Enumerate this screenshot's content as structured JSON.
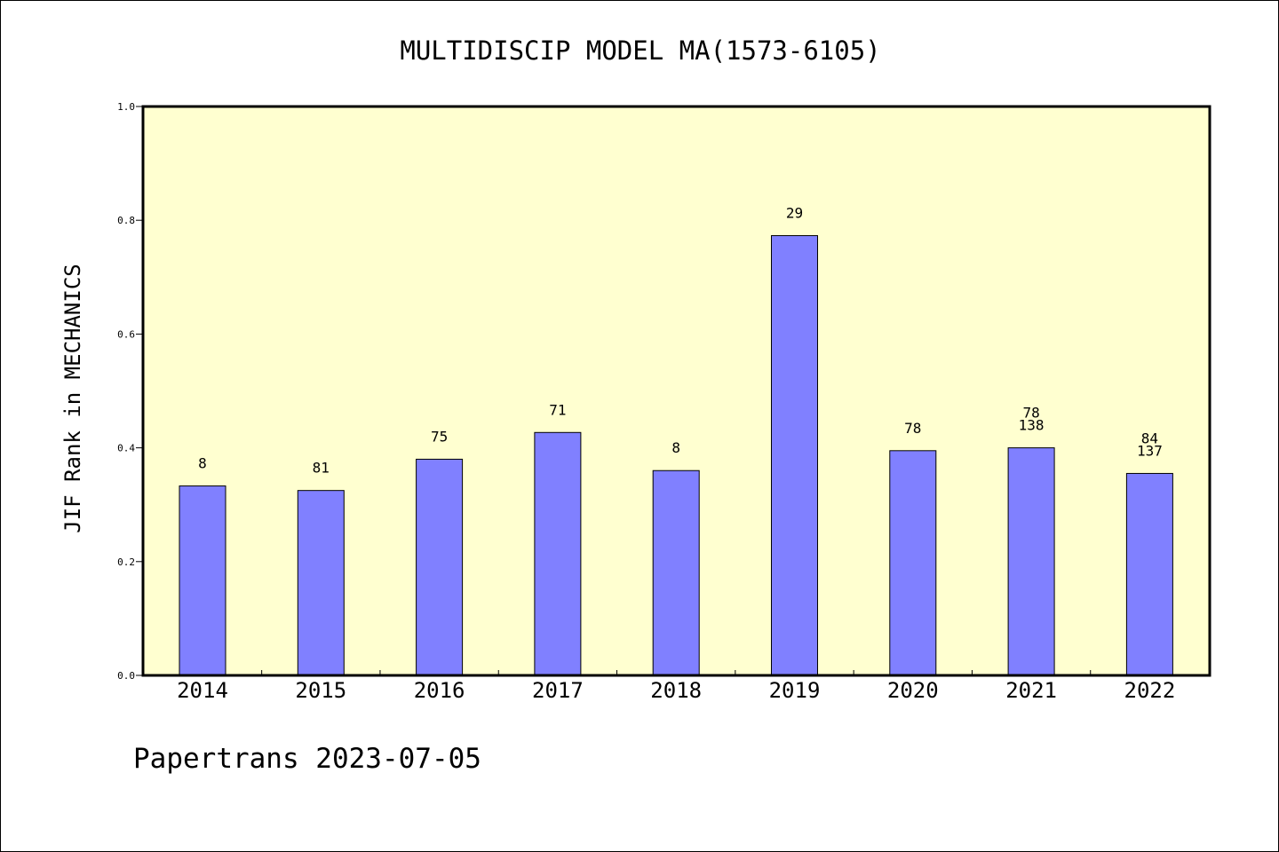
{
  "chart_data": {
    "type": "bar",
    "title": "MULTIDISCIP MODEL MA(1573-6105)",
    "ylabel": "JIF Rank in MECHANICS",
    "xlabel": "",
    "categories": [
      "2014",
      "2015",
      "2016",
      "2017",
      "2018",
      "2019",
      "2020",
      "2021",
      "2022"
    ],
    "values": [
      0.333,
      0.325,
      0.38,
      0.427,
      0.36,
      0.773,
      0.395,
      0.4,
      0.355
    ],
    "annotations": [
      [
        "8"
      ],
      [
        "81"
      ],
      [
        "75"
      ],
      [
        "71"
      ],
      [
        "8"
      ],
      [
        "29"
      ],
      [
        "78"
      ],
      [
        "78",
        "138"
      ],
      [
        "84",
        "137"
      ]
    ],
    "ylim": [
      0,
      1.0
    ],
    "yticks": [
      "0.0",
      "0.2",
      "0.4",
      "0.6",
      "0.8",
      "1.0"
    ],
    "grid": false,
    "legend": "none",
    "colors": {
      "bar_fill": "#8080ff",
      "plot_background": "#ffffd0",
      "axes": "#000000"
    }
  },
  "footer": {
    "credit": "Papertrans 2023-07-05"
  }
}
